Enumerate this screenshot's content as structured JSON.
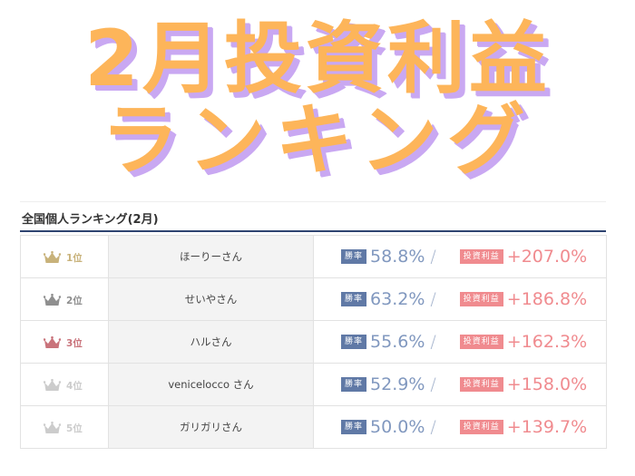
{
  "banner": {
    "line1": "2月投資利益",
    "line2": "ランキング"
  },
  "section_title": "全国個人ランキング(2月)",
  "colors": {
    "banner_text": "#fdb55a",
    "banner_shadow": "#c9a8f2",
    "title_rule": "#2e4470",
    "win_badge": "#6079a6",
    "profit_badge": "#f08b8f"
  },
  "rows": [
    {
      "rank": "1位",
      "crown_icon": "crown-gold-icon",
      "crown_color": "#c8b27a",
      "name": "ほーりーさん",
      "win_label": "勝率",
      "win_rate": "58.8%",
      "separator": "/",
      "profit_label": "投資利益",
      "profit": "+207.0%"
    },
    {
      "rank": "2位",
      "crown_icon": "crown-silver-icon",
      "crown_color": "#8f8f8f",
      "name": "せいやさん",
      "win_label": "勝率",
      "win_rate": "63.2%",
      "separator": "/",
      "profit_label": "投資利益",
      "profit": "+186.8%"
    },
    {
      "rank": "3位",
      "crown_icon": "crown-bronze-icon",
      "crown_color": "#c9737b",
      "name": "ハルさん",
      "win_label": "勝率",
      "win_rate": "55.6%",
      "separator": "/",
      "profit_label": "投資利益",
      "profit": "+162.3%"
    },
    {
      "rank": "4位",
      "crown_icon": "crown-gray-icon",
      "crown_color": "#cccccc",
      "name": "venicelocco さん",
      "win_label": "勝率",
      "win_rate": "52.9%",
      "separator": "/",
      "profit_label": "投資利益",
      "profit": "+158.0%"
    },
    {
      "rank": "5位",
      "crown_icon": "crown-gray-icon",
      "crown_color": "#cccccc",
      "name": "ガリガリさん",
      "win_label": "勝率",
      "win_rate": "50.0%",
      "separator": "/",
      "profit_label": "投資利益",
      "profit": "+139.7%"
    }
  ]
}
